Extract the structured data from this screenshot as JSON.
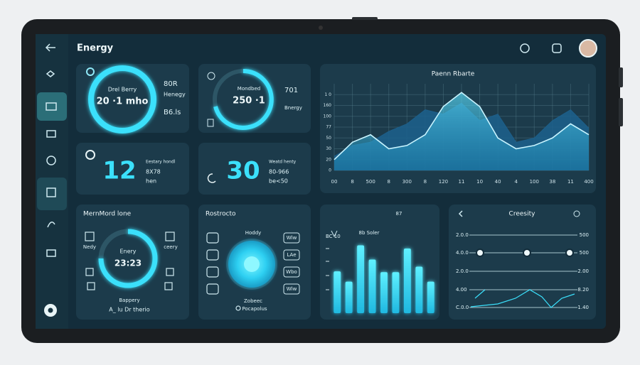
{
  "header": {
    "title": "Energy"
  },
  "card_ring1": {
    "label": "Drel Berry",
    "value": "20 ·1 mho",
    "side": [
      "80R",
      "Henegy",
      "B6.ls"
    ]
  },
  "card_ring2": {
    "label": "Mondbed",
    "value": "250 ·1",
    "side": [
      "701",
      "Bnergy"
    ]
  },
  "stat1": {
    "value": "12",
    "lines": [
      "Eestary hondl",
      "8X78",
      "hen"
    ]
  },
  "stat2": {
    "value": "30",
    "lines": [
      "Weatd henty",
      "80-966",
      "be<50"
    ]
  },
  "area_chart": {
    "title": "Paenn Rbarte",
    "x": [
      0,
      1,
      2,
      3,
      4,
      5,
      6,
      7,
      8,
      9,
      10,
      11,
      12,
      13,
      14
    ],
    "xlim": [
      0,
      14
    ],
    "xticks": [
      {
        "value": 0,
        "label": "00"
      },
      {
        "value": 1,
        "label": "8"
      },
      {
        "value": 2,
        "label": "500"
      },
      {
        "value": 3,
        "label": "8"
      },
      {
        "value": 4,
        "label": "300"
      },
      {
        "value": 5,
        "label": "8"
      },
      {
        "value": 6,
        "label": "120"
      },
      {
        "value": 7,
        "label": "11"
      },
      {
        "value": 8,
        "label": "10"
      },
      {
        "value": 9,
        "label": "40"
      },
      {
        "value": 10,
        "label": "4"
      },
      {
        "value": 11,
        "label": "100"
      },
      {
        "value": 12,
        "label": "38"
      },
      {
        "value": 13,
        "label": "11"
      },
      {
        "value": 14,
        "label": "400"
      }
    ],
    "ylim": [
      0,
      8
    ],
    "yticks": [
      {
        "value": 0,
        "label": "0"
      },
      {
        "value": 1,
        "label": "20"
      },
      {
        "value": 2,
        "label": "30"
      },
      {
        "value": 3,
        "label": "50"
      },
      {
        "value": 4,
        "label": "77"
      },
      {
        "value": 5,
        "label": "100"
      },
      {
        "value": 6,
        "label": "160"
      },
      {
        "value": 7,
        "label": "1 0"
      }
    ],
    "grid": true,
    "series": [
      {
        "color": "#1d5f8a",
        "values": [
          1.3,
          2.3,
          2.6,
          3.6,
          4.3,
          5.6,
          5.2,
          6.2,
          4.6,
          5.2,
          2.6,
          3.0,
          4.6,
          5.6,
          3.9
        ]
      },
      {
        "color": "#c8f4ff",
        "values": [
          1.0,
          2.6,
          3.3,
          2.0,
          2.3,
          3.3,
          5.9,
          7.2,
          5.9,
          3.0,
          2.0,
          2.3,
          3.0,
          4.3,
          3.3
        ]
      }
    ]
  },
  "timer": {
    "title": "MernMord lone",
    "center": [
      "Enery",
      "23:23"
    ],
    "left": "Nedy",
    "right": "ceery",
    "footer": [
      "Bappery",
      "A_ lu Dr therio"
    ]
  },
  "focus": {
    "title": "Rostrocto",
    "top": "Hoddy",
    "footer": [
      "Zobeec",
      "Pocapolus"
    ],
    "icon_labels": [
      "Wlw",
      "LAe",
      "Wbo",
      "Wlw"
    ]
  },
  "bar_chart": {
    "title": "87",
    "subtitle": "8b Soler",
    "axis_label": "BC 10",
    "ylim": [
      0,
      100
    ],
    "color": "#2fd9f5",
    "values": [
      53,
      40,
      86,
      68,
      52,
      52,
      82,
      59,
      40
    ]
  },
  "sliders": {
    "title": "Creesity",
    "rows": [
      {
        "left": "2.0.0",
        "right": "500"
      },
      {
        "left": "4.0.0",
        "right": "500"
      },
      {
        "left": "2.0.0",
        "right": "2.00"
      },
      {
        "left": "4.00",
        "right": "8.20"
      },
      {
        "left": "C.0.0",
        "right": "1.40"
      }
    ]
  }
}
